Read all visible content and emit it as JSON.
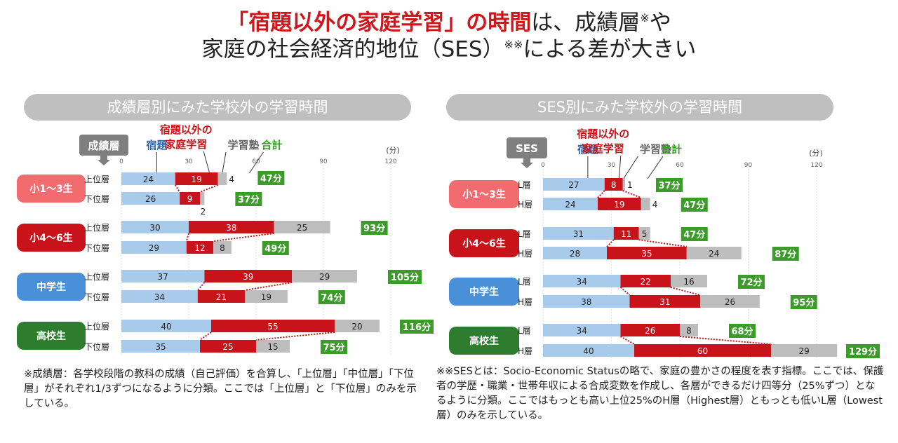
{
  "headline": {
    "line1_red": "「宿題以外の家庭学習」の時間",
    "line1_rest": "は、成績層",
    "line1_mark": "※",
    "line1_tail": "や",
    "line2": "家庭の社会経済的地位（SES）",
    "line2_mark": "※※",
    "line2_tail": "による差が大きい"
  },
  "colors": {
    "homework": "#a9cbeb",
    "home_study": "#c8131a",
    "juku": "#bdbdbd",
    "total": "#3b9c2a",
    "homework_text": "#2f63a8",
    "home_study_text": "#c8131a",
    "juku_text": "#666666",
    "total_text": "#3b9c2a"
  },
  "chart_data": [
    {
      "type": "bar",
      "stacked": true,
      "orientation": "horizontal",
      "title": "成績層別にみた学校外の学習時間",
      "group_label": "成績層",
      "unit": "(分)",
      "xlim": [
        0,
        120
      ],
      "ticks": [
        0,
        30,
        60,
        90,
        120
      ],
      "legend": [
        "宿題",
        "宿題以外の家庭学習",
        "学習塾",
        "合計"
      ],
      "groups": [
        {
          "name": "小1～3生",
          "color": "#f26b6e",
          "rows": [
            {
              "label": "上位層",
              "values": [
                24,
                19,
                4
              ],
              "total": "47分"
            },
            {
              "label": "下位層",
              "values": [
                26,
                9,
                2
              ],
              "total": "37分"
            }
          ]
        },
        {
          "name": "小4～6生",
          "color": "#c8131a",
          "rows": [
            {
              "label": "上位層",
              "values": [
                30,
                38,
                25
              ],
              "total": "93分"
            },
            {
              "label": "下位層",
              "values": [
                29,
                12,
                8
              ],
              "total": "49分"
            }
          ]
        },
        {
          "name": "中学生",
          "color": "#4a90d9",
          "rows": [
            {
              "label": "上位層",
              "values": [
                37,
                39,
                29
              ],
              "total": "105分"
            },
            {
              "label": "下位層",
              "values": [
                34,
                21,
                19
              ],
              "total": "74分"
            }
          ]
        },
        {
          "name": "高校生",
          "color": "#2e7d2e",
          "rows": [
            {
              "label": "上位層",
              "values": [
                40,
                55,
                20
              ],
              "total": "116分"
            },
            {
              "label": "下位層",
              "values": [
                35,
                25,
                15
              ],
              "total": "75分"
            }
          ]
        }
      ]
    },
    {
      "type": "bar",
      "stacked": true,
      "orientation": "horizontal",
      "title": "SES別にみた学校外の学習時間",
      "group_label": "SES",
      "unit": "(分)",
      "xlim": [
        0,
        120
      ],
      "ticks": [
        0,
        30,
        60,
        90,
        120
      ],
      "legend": [
        "宿題",
        "宿題以外の家庭学習",
        "学習塾",
        "合計"
      ],
      "groups": [
        {
          "name": "小1～3生",
          "color": "#f26b6e",
          "rows": [
            {
              "label": "L層",
              "values": [
                27,
                8,
                1
              ],
              "total": "37分"
            },
            {
              "label": "H層",
              "values": [
                24,
                19,
                4
              ],
              "total": "47分"
            }
          ]
        },
        {
          "name": "小4～6生",
          "color": "#c8131a",
          "rows": [
            {
              "label": "L層",
              "values": [
                31,
                11,
                5
              ],
              "total": "47分"
            },
            {
              "label": "H層",
              "values": [
                28,
                35,
                24
              ],
              "total": "87分"
            }
          ]
        },
        {
          "name": "中学生",
          "color": "#4a90d9",
          "rows": [
            {
              "label": "L層",
              "values": [
                34,
                22,
                16
              ],
              "total": "72分"
            },
            {
              "label": "H層",
              "values": [
                38,
                31,
                26
              ],
              "total": "95分"
            }
          ]
        },
        {
          "name": "高校生",
          "color": "#2e7d2e",
          "rows": [
            {
              "label": "L層",
              "values": [
                34,
                26,
                8
              ],
              "total": "68分"
            },
            {
              "label": "H層",
              "values": [
                40,
                60,
                29
              ],
              "total": "129分"
            }
          ]
        }
      ]
    }
  ],
  "notes": {
    "left": "※成績層：各学校段階の教科の成績（自己評価）を合算し、「上位層」「中位層」「下位層」がそれぞれ1/3ずつになるように分類。ここでは「上位層」と「下位層」のみを示している。",
    "right": "※※SESとは：Socio-Economic Statusの略で、家庭の豊かさの程度を表す指標。ここでは、保護者の学歴・職業・世帯年収による合成変数を作成し、各層ができるだけ四等分（25%ずつ）となるように分類。ここではもっとも高い上位25%のH層（Highest層）ともっとも低いL層（Lowest層）のみを示している。"
  }
}
